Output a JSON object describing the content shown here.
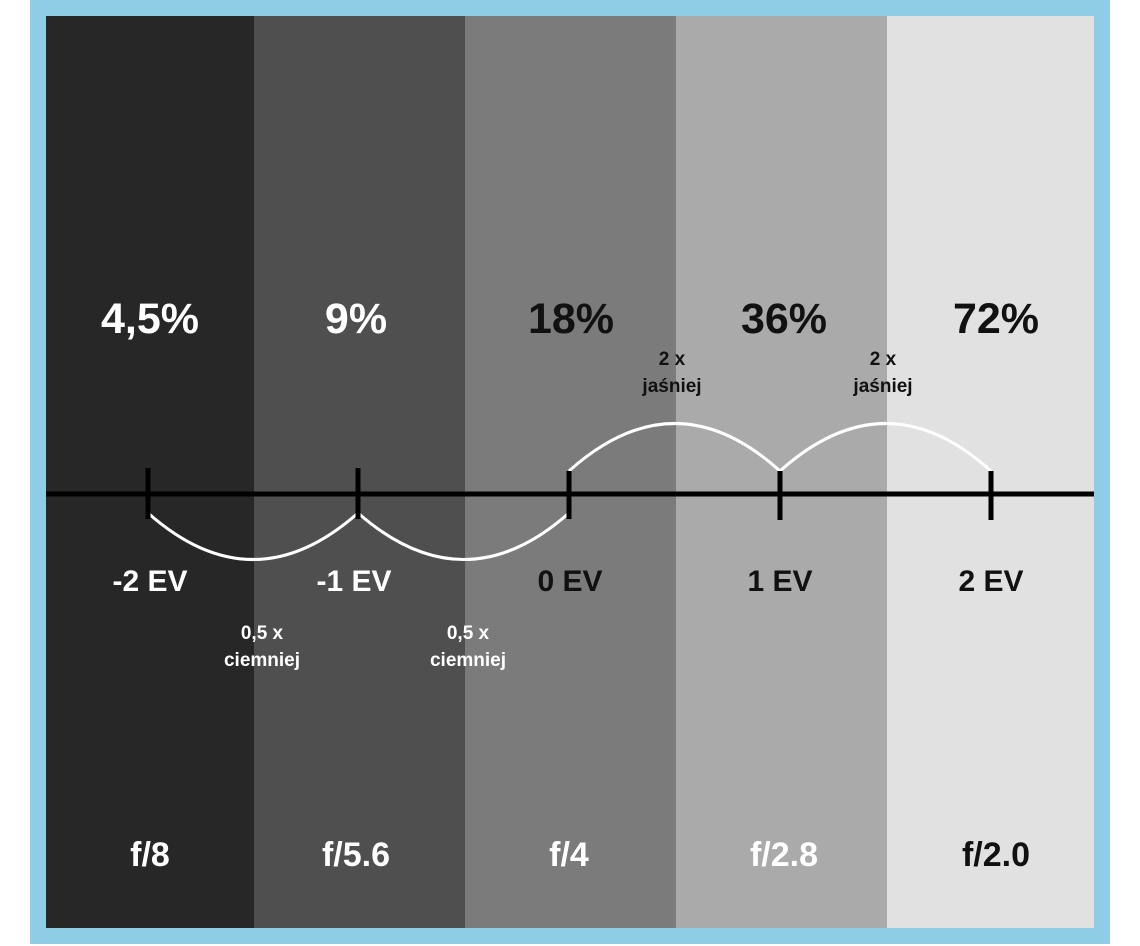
{
  "colors": {
    "frame": "#8fcde6",
    "bands": [
      "#272727",
      "#4f4f4f",
      "#7b7b7b",
      "#aaaaaa",
      "#e1e1e1"
    ],
    "light_text": "#ffffff",
    "dark_text": "#111111"
  },
  "columns": [
    {
      "percent": "4,5%",
      "ev": "-2 EV",
      "aperture": "f/8"
    },
    {
      "percent": "9%",
      "ev": "-1 EV",
      "aperture": "f/5.6"
    },
    {
      "percent": "18%",
      "ev": "0 EV",
      "aperture": "f/4"
    },
    {
      "percent": "36%",
      "ev": "1 EV",
      "aperture": "f/2.8"
    },
    {
      "percent": "72%",
      "ev": "2 EV",
      "aperture": "f/2.0"
    }
  ],
  "annotations": {
    "darker": {
      "line1": "0,5 x",
      "line2": "ciemniej"
    },
    "brighter": {
      "line1": "2 x",
      "line2": "jaśniej"
    }
  }
}
